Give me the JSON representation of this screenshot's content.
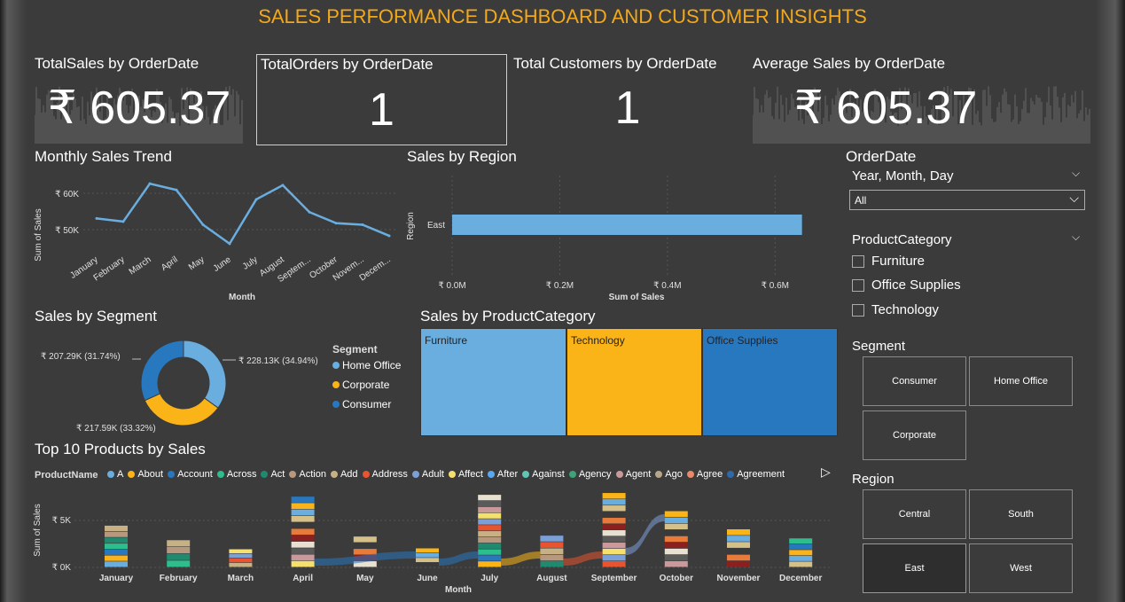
{
  "title": "SALES PERFORMANCE DASHBOARD AND CUSTOMER INSIGHTS",
  "kpis": [
    {
      "label": "TotalSales by OrderDate",
      "value": "₹ 605.37"
    },
    {
      "label": "TotalOrders by OrderDate",
      "value": "1"
    },
    {
      "label": "Total Customers by OrderDate",
      "value": "1"
    },
    {
      "label": "Average Sales by OrderDate",
      "value": "₹ 605.37"
    }
  ],
  "monthly_trend": {
    "title": "Monthly Sales Trend",
    "xlabel": "Month",
    "ylabel": "Sum of Sales",
    "ytick_labels": [
      "₹ 60K",
      "₹ 50K"
    ],
    "tick_labels": [
      "January",
      "February",
      "March",
      "April",
      "May",
      "June",
      "July",
      "Septem...",
      "October",
      "Novem...",
      "Decem..."
    ],
    "tick_label_august": "August"
  },
  "region_chart": {
    "title": "Sales by Region",
    "ylabel": "Region",
    "xlabel": "Sum of Sales",
    "category": "East",
    "xtick_labels": [
      "₹ 0.0M",
      "₹ 0.2M",
      "₹ 0.4M",
      "₹ 0.6M"
    ]
  },
  "segment_chart": {
    "title": "Sales by Segment",
    "legend_title": "Segment",
    "legend": [
      "Home Office",
      "Corporate",
      "Consumer"
    ],
    "labels": [
      "₹ 228.13K (34.94%)",
      "₹ 217.59K (33.32%)",
      "₹ 207.29K (31.74%)"
    ]
  },
  "category_chart": {
    "title": "Sales by ProductCategory",
    "labels": [
      "Furniture",
      "Technology",
      "Office Supplies"
    ]
  },
  "top_products": {
    "title": "Top 10 Products by Sales",
    "legend_title": "ProductName",
    "legend": [
      "A",
      "About",
      "Account",
      "Across",
      "Act",
      "Action",
      "Add",
      "Address",
      "Adult",
      "Affect",
      "After",
      "Against",
      "Agency",
      "Agent",
      "Ago",
      "Agree",
      "Agreement"
    ],
    "ylabel": "Sum of Sales",
    "xlabel": "Month",
    "ytick_labels": [
      "₹ 5K",
      "₹ 0K"
    ],
    "months": [
      "January",
      "February",
      "March",
      "April",
      "May",
      "June",
      "July",
      "August",
      "September",
      "October",
      "November",
      "December"
    ]
  },
  "slicers": {
    "orderdate": {
      "title": "OrderDate",
      "hierarchy": "Year, Month, Day",
      "selected": "All"
    },
    "product_category": {
      "title": "ProductCategory",
      "options": [
        "Furniture",
        "Office Supplies",
        "Technology"
      ]
    },
    "segment": {
      "title": "Segment",
      "tiles": [
        "Consumer",
        "Home Office",
        "Corporate"
      ]
    },
    "region": {
      "title": "Region",
      "tiles": [
        "Central",
        "South",
        "East",
        "West"
      ],
      "selected": "East"
    }
  },
  "colors": {
    "accent_title": "#f2a81c",
    "light_blue": "#6aaee0",
    "yellow": "#fbb417",
    "dark_blue": "#2878c0",
    "background": "#3b3b3b"
  },
  "chart_data": [
    {
      "type": "line",
      "title": "Monthly Sales Trend",
      "xlabel": "Month",
      "ylabel": "Sum of Sales",
      "categories": [
        "January",
        "February",
        "March",
        "April",
        "May",
        "June",
        "July",
        "August",
        "September",
        "October",
        "November",
        "December"
      ],
      "values": [
        53000,
        52000,
        64000,
        62000,
        51000,
        45000,
        59000,
        63500,
        55000,
        51500,
        51000,
        47500
      ],
      "ylim": [
        43000,
        66000
      ]
    },
    {
      "type": "bar",
      "title": "Sales by Region",
      "xlabel": "Sum of Sales",
      "ylabel": "Region",
      "categories": [
        "East"
      ],
      "values": [
        0.65
      ],
      "xlim": [
        0,
        0.7
      ],
      "unit": "M"
    },
    {
      "type": "pie",
      "title": "Sales by Segment",
      "categories": [
        "Home Office",
        "Corporate",
        "Consumer"
      ],
      "values": [
        228.13,
        217.59,
        207.29
      ],
      "unit": "K"
    },
    {
      "type": "bar",
      "title": "Sales by ProductCategory",
      "categories": [
        "Furniture",
        "Technology",
        "Office Supplies"
      ],
      "values": [
        2.12,
        1.99,
        1.95
      ]
    },
    {
      "type": "bar",
      "title": "Top 10 Products by Sales",
      "xlabel": "Month",
      "ylabel": "Sum of Sales",
      "categories": [
        "January",
        "February",
        "March",
        "April",
        "May",
        "June",
        "July",
        "August",
        "September",
        "October",
        "November",
        "December"
      ],
      "values": [
        4600,
        3000,
        2000,
        7800,
        3400,
        2100,
        8000,
        3500,
        8200,
        6200,
        4200,
        3200
      ],
      "ylim": [
        0,
        8500
      ]
    }
  ]
}
